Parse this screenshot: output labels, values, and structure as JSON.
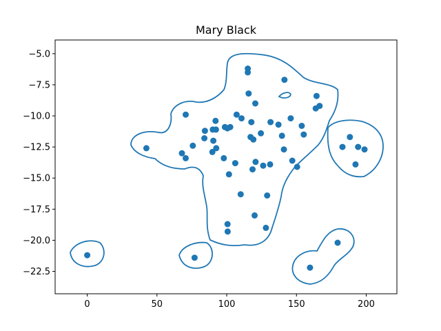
{
  "chart_data": {
    "type": "scatter",
    "title": "Mary Black",
    "xlabel": "",
    "ylabel": "",
    "xlim": [
      -23,
      222
    ],
    "ylim": [
      -24.3,
      -3.9
    ],
    "xticks": [
      0,
      50,
      100,
      150,
      200
    ],
    "xtick_labels": [
      "0",
      "50",
      "100",
      "150",
      "200"
    ],
    "yticks": [
      -5.0,
      -7.5,
      -10.0,
      -12.5,
      -15.0,
      -17.5,
      -20.0,
      -22.5
    ],
    "ytick_labels": [
      "−5.0",
      "−7.5",
      "−10.0",
      "−12.5",
      "−15.0",
      "−17.5",
      "−20.0",
      "−22.5"
    ],
    "grid": false,
    "colors": {
      "points": "#1f77b4",
      "contour": "#1f77b4"
    },
    "points": [
      [
        0,
        -21.2
      ],
      [
        42.4,
        -12.6
      ],
      [
        67.9,
        -13.0
      ],
      [
        70.6,
        -13.4
      ],
      [
        70.6,
        -9.9
      ],
      [
        75.7,
        -12.4
      ],
      [
        77.0,
        -21.4
      ],
      [
        84.0,
        -11.8
      ],
      [
        84.4,
        -11.2
      ],
      [
        89.7,
        -12.9
      ],
      [
        90.0,
        -11.1
      ],
      [
        90.4,
        -12.0
      ],
      [
        92.0,
        -10.4
      ],
      [
        92.3,
        -11.1
      ],
      [
        92.5,
        -12.6
      ],
      [
        97.9,
        -13.4
      ],
      [
        98.7,
        -10.9
      ],
      [
        100.5,
        -11.0
      ],
      [
        100.6,
        -18.7
      ],
      [
        100.7,
        -19.3
      ],
      [
        101.6,
        -14.7
      ],
      [
        102.5,
        -10.9
      ],
      [
        106.1,
        -13.8
      ],
      [
        107.1,
        -9.9
      ],
      [
        110.0,
        -16.3
      ],
      [
        110.6,
        -10.2
      ],
      [
        115.1,
        -6.2
      ],
      [
        115.1,
        -6.5
      ],
      [
        115.7,
        -8.2
      ],
      [
        117.1,
        -11.7
      ],
      [
        117.7,
        -10.5
      ],
      [
        118.5,
        -14.3
      ],
      [
        119.1,
        -11.9
      ],
      [
        120.0,
        -18.0
      ],
      [
        120.5,
        -9.0
      ],
      [
        120.7,
        -13.7
      ],
      [
        124.5,
        -11.4
      ],
      [
        126.1,
        -14.0
      ],
      [
        128.1,
        -19.0
      ],
      [
        129.0,
        -16.4
      ],
      [
        131.1,
        -13.9
      ],
      [
        131.4,
        -10.5
      ],
      [
        137.1,
        -10.7
      ],
      [
        139.6,
        -11.6
      ],
      [
        141.0,
        -12.7
      ],
      [
        141.4,
        -7.1
      ],
      [
        145.9,
        -10.2
      ],
      [
        147.0,
        -13.6
      ],
      [
        150.5,
        -14.1
      ],
      [
        153.8,
        -10.8
      ],
      [
        155.2,
        -11.5
      ],
      [
        159.7,
        -22.2
      ],
      [
        163.8,
        -9.4
      ],
      [
        164.4,
        -8.4
      ],
      [
        166.6,
        -9.2
      ],
      [
        179.5,
        -20.2
      ],
      [
        183.0,
        -12.5
      ],
      [
        188.3,
        -11.7
      ],
      [
        192.3,
        -13.9
      ],
      [
        194.2,
        -12.5
      ],
      [
        198.8,
        -12.7
      ]
    ]
  }
}
